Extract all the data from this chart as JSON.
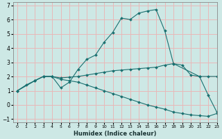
{
  "xlabel": "Humidex (Indice chaleur)",
  "background_color": "#cde8e5",
  "grid_color": "#e8b8b8",
  "line_color": "#1a7070",
  "xlim": [
    -0.5,
    23
  ],
  "ylim": [
    -1.2,
    7.2
  ],
  "yticks": [
    -1,
    0,
    1,
    2,
    3,
    4,
    5,
    6,
    7
  ],
  "xticks": [
    0,
    1,
    2,
    3,
    4,
    5,
    6,
    7,
    8,
    9,
    10,
    11,
    12,
    13,
    14,
    15,
    16,
    17,
    18,
    19,
    20,
    21,
    22,
    23
  ],
  "line1_x": [
    0,
    1,
    2,
    3,
    4,
    5,
    6,
    7,
    8,
    9,
    10,
    11,
    12,
    13,
    14,
    15,
    16,
    17,
    18,
    21,
    22,
    23
  ],
  "line1_y": [
    1.0,
    1.4,
    1.7,
    2.0,
    2.0,
    1.2,
    1.6,
    2.5,
    3.2,
    3.5,
    4.4,
    5.1,
    6.1,
    6.0,
    6.45,
    6.6,
    6.7,
    5.2,
    2.9,
    2.0,
    0.7,
    -0.5
  ],
  "line2_x": [
    0,
    2,
    3,
    4,
    5,
    6,
    7,
    8,
    9,
    10,
    11,
    12,
    13,
    14,
    15,
    16,
    17,
    18,
    19,
    20,
    21,
    22,
    23
  ],
  "line2_y": [
    1.0,
    1.7,
    2.0,
    2.0,
    1.9,
    1.95,
    2.0,
    2.1,
    2.2,
    2.3,
    2.4,
    2.45,
    2.5,
    2.55,
    2.6,
    2.65,
    2.8,
    2.9,
    2.8,
    2.1,
    2.0,
    2.0,
    2.0
  ],
  "line3_x": [
    0,
    2,
    3,
    4,
    5,
    6,
    7,
    8,
    9,
    10,
    11,
    12,
    13,
    14,
    15,
    16,
    17,
    18,
    19,
    20,
    21,
    22,
    23
  ],
  "line3_y": [
    1.0,
    1.7,
    2.0,
    2.0,
    1.8,
    1.7,
    1.6,
    1.4,
    1.2,
    1.0,
    0.8,
    0.6,
    0.4,
    0.2,
    0.0,
    -0.15,
    -0.3,
    -0.5,
    -0.6,
    -0.7,
    -0.75,
    -0.8,
    -0.6
  ]
}
